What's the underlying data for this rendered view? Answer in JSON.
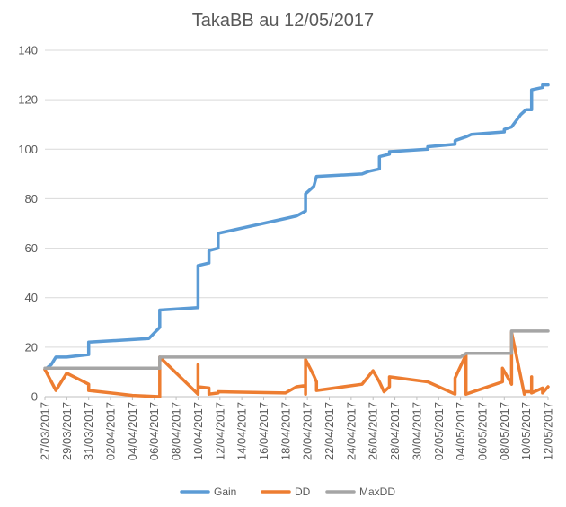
{
  "chart_data": {
    "type": "line",
    "title": "TakaBB au 12/05/2017",
    "xlabel": "",
    "ylabel": "",
    "ylim": [
      0,
      140
    ],
    "yticks": [
      0,
      20,
      40,
      60,
      80,
      100,
      120,
      140
    ],
    "xlim": [
      "2017-03-27",
      "2017-05-12"
    ],
    "xtick_labels": [
      "27/03/2017",
      "29/03/2017",
      "31/03/2017",
      "02/04/2017",
      "04/04/2017",
      "06/04/2017",
      "08/04/2017",
      "10/04/2017",
      "12/04/2017",
      "14/04/2017",
      "16/04/2017",
      "18/04/2017",
      "20/04/2017",
      "22/04/2017",
      "24/04/2017",
      "26/04/2017",
      "28/04/2017",
      "30/04/2017",
      "02/05/2017",
      "04/05/2017",
      "06/05/2017",
      "08/05/2017",
      "10/05/2017",
      "12/05/2017"
    ],
    "xtick_dates": [
      "2017-03-27",
      "2017-03-29",
      "2017-03-31",
      "2017-04-02",
      "2017-04-04",
      "2017-04-06",
      "2017-04-08",
      "2017-04-10",
      "2017-04-12",
      "2017-04-14",
      "2017-04-16",
      "2017-04-18",
      "2017-04-20",
      "2017-04-22",
      "2017-04-24",
      "2017-04-26",
      "2017-04-28",
      "2017-04-30",
      "2017-05-02",
      "2017-05-04",
      "2017-05-06",
      "2017-05-08",
      "2017-05-10",
      "2017-05-12"
    ],
    "grid": true,
    "legend_position": "bottom",
    "series": [
      {
        "name": "Gain",
        "color": "#5b9bd5",
        "points": [
          [
            "2017-03-27T00:00",
            11
          ],
          [
            "2017-03-27T14:00",
            13
          ],
          [
            "2017-03-28T00:00",
            16
          ],
          [
            "2017-03-29T00:00",
            16
          ],
          [
            "2017-03-31T00:00",
            17
          ],
          [
            "2017-03-31T00:00",
            22
          ],
          [
            "2017-04-05T12:00",
            23.5
          ],
          [
            "2017-04-06T12:00",
            28
          ],
          [
            "2017-04-06T12:00",
            35
          ],
          [
            "2017-04-10T00:00",
            36
          ],
          [
            "2017-04-10T00:00",
            53
          ],
          [
            "2017-04-11T00:00",
            54
          ],
          [
            "2017-04-11T00:00",
            59
          ],
          [
            "2017-04-11T20:00",
            60
          ],
          [
            "2017-04-11T20:00",
            66
          ],
          [
            "2017-04-18T00:00",
            72
          ],
          [
            "2017-04-19T00:00",
            73
          ],
          [
            "2017-04-19T20:00",
            75
          ],
          [
            "2017-04-19T20:00",
            82
          ],
          [
            "2017-04-20T14:00",
            85
          ],
          [
            "2017-04-20T20:00",
            89
          ],
          [
            "2017-04-25T00:00",
            90
          ],
          [
            "2017-04-25T14:00",
            91
          ],
          [
            "2017-04-26T14:00",
            92
          ],
          [
            "2017-04-26T14:00",
            97
          ],
          [
            "2017-04-27T12:00",
            98
          ],
          [
            "2017-04-27T12:00",
            99
          ],
          [
            "2017-05-01T00:00",
            100
          ],
          [
            "2017-05-01T00:00",
            101
          ],
          [
            "2017-05-03T12:00",
            102
          ],
          [
            "2017-05-03T12:00",
            103.5
          ],
          [
            "2017-05-04T12:00",
            105
          ],
          [
            "2017-05-05T00:00",
            106
          ],
          [
            "2017-05-08T00:00",
            107
          ],
          [
            "2017-05-08T00:00",
            108
          ],
          [
            "2017-05-08T16:00",
            109
          ],
          [
            "2017-05-09T12:00",
            114
          ],
          [
            "2017-05-10T00:00",
            116
          ],
          [
            "2017-05-10T12:00",
            116
          ],
          [
            "2017-05-10T12:00",
            124
          ],
          [
            "2017-05-11T12:00",
            125
          ],
          [
            "2017-05-11T12:00",
            126
          ],
          [
            "2017-05-12T00:00",
            126
          ]
        ]
      },
      {
        "name": "DD",
        "color": "#ed7d31",
        "points": [
          [
            "2017-03-27T00:00",
            11
          ],
          [
            "2017-03-28T00:00",
            2.5
          ],
          [
            "2017-03-29T00:00",
            9.5
          ],
          [
            "2017-03-31T00:00",
            5
          ],
          [
            "2017-03-31T00:00",
            2.5
          ],
          [
            "2017-04-04T00:00",
            0.5
          ],
          [
            "2017-04-06T12:00",
            0
          ],
          [
            "2017-04-06T12:00",
            16
          ],
          [
            "2017-04-10T00:00",
            1
          ],
          [
            "2017-04-10T00:00",
            13
          ],
          [
            "2017-04-10T00:00",
            4
          ],
          [
            "2017-04-11T00:00",
            3.5
          ],
          [
            "2017-04-11T00:00",
            1
          ],
          [
            "2017-04-11T20:00",
            1.5
          ],
          [
            "2017-04-11T20:00",
            2
          ],
          [
            "2017-04-18T00:00",
            1.5
          ],
          [
            "2017-04-19T00:00",
            4
          ],
          [
            "2017-04-19T20:00",
            4.5
          ],
          [
            "2017-04-19T20:00",
            1
          ],
          [
            "2017-04-19T20:00",
            15
          ],
          [
            "2017-04-20T14:00",
            8.5
          ],
          [
            "2017-04-20T20:00",
            6
          ],
          [
            "2017-04-20T20:00",
            2.5
          ],
          [
            "2017-04-25T00:00",
            5
          ],
          [
            "2017-04-26T00:00",
            10.5
          ],
          [
            "2017-04-26T14:00",
            6
          ],
          [
            "2017-04-27T00:00",
            2
          ],
          [
            "2017-04-27T12:00",
            4
          ],
          [
            "2017-04-27T12:00",
            8
          ],
          [
            "2017-05-01T00:00",
            6
          ],
          [
            "2017-05-03T12:00",
            1
          ],
          [
            "2017-05-03T12:00",
            7.5
          ],
          [
            "2017-05-04T12:00",
            17
          ],
          [
            "2017-05-04T12:00",
            1
          ],
          [
            "2017-05-07T20:00",
            6
          ],
          [
            "2017-05-07T20:00",
            11.5
          ],
          [
            "2017-05-08T16:00",
            5
          ],
          [
            "2017-05-08T16:00",
            26
          ],
          [
            "2017-05-09T20:00",
            1
          ],
          [
            "2017-05-09T20:00",
            2
          ],
          [
            "2017-05-10T12:00",
            2
          ],
          [
            "2017-05-10T12:00",
            8
          ],
          [
            "2017-05-10T12:00",
            1.5
          ],
          [
            "2017-05-11T12:00",
            3.5
          ],
          [
            "2017-05-11T12:00",
            1.5
          ],
          [
            "2017-05-12T00:00",
            4
          ]
        ]
      },
      {
        "name": "MaxDD",
        "color": "#a5a5a5",
        "points": [
          [
            "2017-03-27T00:00",
            11.5
          ],
          [
            "2017-04-06T12:00",
            11.5
          ],
          [
            "2017-04-06T12:00",
            16
          ],
          [
            "2017-05-04T00:00",
            16
          ],
          [
            "2017-05-04T12:00",
            17.5
          ],
          [
            "2017-05-08T16:00",
            17.5
          ],
          [
            "2017-05-08T16:00",
            26.5
          ],
          [
            "2017-05-12T00:00",
            26.5
          ]
        ]
      }
    ]
  }
}
